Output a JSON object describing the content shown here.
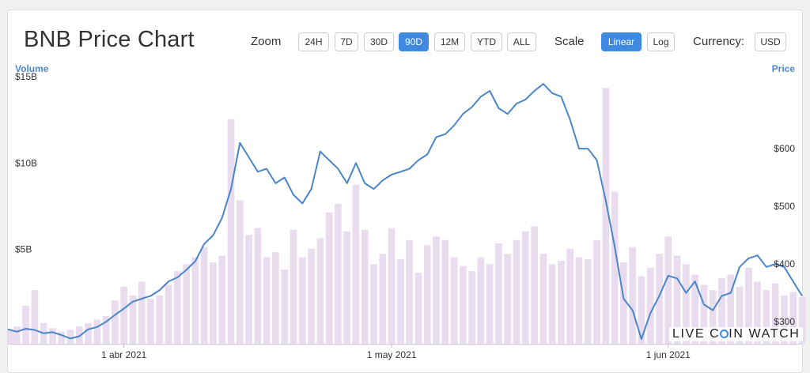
{
  "header": {
    "title": "BNB Price Chart",
    "zoom_label": "Zoom",
    "zoom_options": [
      "24H",
      "7D",
      "30D",
      "90D",
      "12M",
      "YTD",
      "ALL"
    ],
    "zoom_selected": "90D",
    "scale_label": "Scale",
    "scale_options": [
      "Linear",
      "Log"
    ],
    "scale_selected": "Linear",
    "currency_label": "Currency:",
    "currency_value": "USD"
  },
  "watermark": {
    "before": "LIVE C",
    "after": "IN WATCH"
  },
  "colors": {
    "price_line": "#4a86c8",
    "volume_bars": "#e9dcef",
    "accent": "#3f8ae0"
  },
  "chart_data": {
    "type": "line",
    "ylabel_left": "Volume",
    "ylabel_right": "Price",
    "x_tick_labels": [
      "1 abr 2021",
      "1 may 2021",
      "1 jun 2021"
    ],
    "x_tick_days": [
      13,
      43,
      74
    ],
    "volume_ticks": [
      {
        "label": "$5B",
        "value": 5
      },
      {
        "label": "$10B",
        "value": 10
      },
      {
        "label": "$15B",
        "value": 15
      }
    ],
    "price_ticks": [
      {
        "label": "$300",
        "value": 300
      },
      {
        "label": "$400",
        "value": 400
      },
      {
        "label": "$500",
        "value": 500
      },
      {
        "label": "$600",
        "value": 600
      }
    ],
    "volume_range_billion": [
      0,
      15.5
    ],
    "price_range": [
      262,
      726
    ],
    "series": [
      {
        "name": "Price",
        "unit": "USD",
        "x": [
          0,
          1,
          2,
          3,
          4,
          5,
          6,
          7,
          8,
          9,
          10,
          11,
          12,
          13,
          14,
          15,
          16,
          17,
          18,
          19,
          20,
          21,
          22,
          23,
          24,
          25,
          26,
          27,
          28,
          29,
          30,
          31,
          32,
          33,
          34,
          35,
          36,
          37,
          38,
          39,
          40,
          41,
          42,
          43,
          44,
          45,
          46,
          47,
          48,
          49,
          50,
          51,
          52,
          53,
          54,
          55,
          56,
          57,
          58,
          59,
          60,
          61,
          62,
          63,
          64,
          65,
          66,
          67,
          68,
          69,
          70,
          71,
          72,
          73,
          74,
          75,
          76,
          77,
          78,
          79,
          80,
          81,
          82,
          83,
          84,
          85,
          86,
          87,
          88,
          89
        ],
        "y": [
          287,
          283,
          288,
          286,
          280,
          282,
          277,
          271,
          275,
          287,
          291,
          300,
          312,
          323,
          335,
          340,
          345,
          355,
          370,
          377,
          390,
          405,
          435,
          450,
          480,
          530,
          610,
          585,
          560,
          565,
          540,
          550,
          520,
          505,
          530,
          595,
          580,
          565,
          540,
          575,
          540,
          530,
          545,
          555,
          560,
          565,
          580,
          590,
          620,
          625,
          640,
          660,
          672,
          690,
          700,
          670,
          660,
          678,
          685,
          700,
          712,
          696,
          690,
          650,
          600,
          600,
          580,
          510,
          430,
          340,
          320,
          270,
          315,
          345,
          380,
          375,
          350,
          370,
          330,
          320,
          345,
          350,
          395,
          410,
          415,
          395,
          400,
          395,
          370,
          345
        ]
      },
      {
        "name": "Volume",
        "unit": "USD billion",
        "x": [
          0,
          1,
          2,
          3,
          4,
          5,
          6,
          7,
          8,
          9,
          10,
          11,
          12,
          13,
          14,
          15,
          16,
          17,
          18,
          19,
          20,
          21,
          22,
          23,
          24,
          25,
          26,
          27,
          28,
          29,
          30,
          31,
          32,
          33,
          34,
          35,
          36,
          37,
          38,
          39,
          40,
          41,
          42,
          43,
          44,
          45,
          46,
          47,
          48,
          49,
          50,
          51,
          52,
          53,
          54,
          55,
          56,
          57,
          58,
          59,
          60,
          61,
          62,
          63,
          64,
          65,
          66,
          67,
          68,
          69,
          70,
          71,
          72,
          73,
          74,
          75,
          76,
          77,
          78,
          79,
          80,
          81,
          82,
          83,
          84,
          85,
          86,
          87,
          88,
          89
        ],
        "y": [
          0.8,
          1.0,
          2.2,
          3.1,
          1.2,
          0.9,
          0.7,
          0.8,
          1.0,
          1.2,
          1.4,
          1.6,
          2.5,
          3.3,
          2.8,
          3.6,
          2.6,
          2.8,
          3.4,
          4.2,
          4.6,
          5.0,
          5.6,
          4.7,
          5.1,
          13.0,
          8.3,
          6.3,
          6.7,
          5.0,
          5.3,
          4.3,
          6.6,
          5.0,
          5.5,
          6.1,
          7.6,
          8.1,
          6.5,
          9.2,
          6.6,
          4.6,
          5.2,
          6.7,
          4.9,
          6.0,
          4.1,
          5.7,
          6.2,
          6.0,
          5.0,
          4.5,
          4.2,
          5.0,
          4.6,
          5.8,
          5.2,
          6.0,
          6.5,
          6.8,
          5.2,
          4.6,
          4.8,
          5.5,
          5.0,
          4.9,
          6.0,
          14.8,
          8.8,
          4.7,
          5.6,
          3.9,
          4.4,
          5.2,
          6.2,
          5.1,
          4.6,
          4.0,
          3.4,
          3.1,
          3.8,
          4.0,
          3.3,
          4.4,
          3.6,
          3.1,
          3.5,
          2.8,
          3.0,
          2.7
        ]
      }
    ]
  }
}
